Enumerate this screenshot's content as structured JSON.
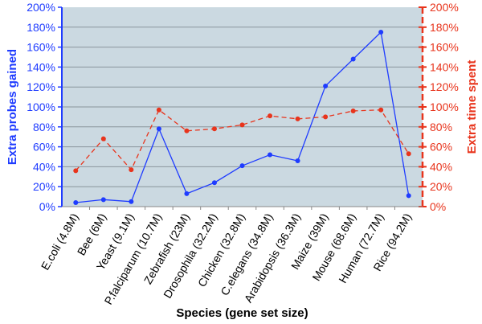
{
  "chart_data": {
    "type": "line",
    "xlabel": "Species (gene set size)",
    "ylabel_left": "Extra probes gained",
    "ylabel_right": "Extra time spent",
    "categories": [
      "E.coli (4.8M)",
      "Bee (6M)",
      "Yeast (9.1M)",
      "P.falciparum (10.7M)",
      "Zebrafish (23M)",
      "Drosophila (32.2M)",
      "Chicken (32.8M)",
      "C.elegans (34.8M)",
      "Arabidopsis (36.3M)",
      "Maize (39M)",
      "Mouse (68.6M)",
      "Human (72.7M)",
      "Rice (94.2M)"
    ],
    "ylim": [
      0,
      200
    ],
    "yticks": [
      "0%",
      "20%",
      "40%",
      "60%",
      "80%",
      "100%",
      "120%",
      "140%",
      "160%",
      "180%",
      "200%"
    ],
    "grid": true,
    "background": "#cbd9e1",
    "series": [
      {
        "axis": "left",
        "color": "#1f3cff",
        "style": "solid",
        "values": [
          4,
          7,
          5,
          78,
          13,
          24,
          41,
          52,
          46,
          121,
          148,
          175,
          11
        ]
      },
      {
        "axis": "right",
        "color": "#e8341c",
        "style": "dashed",
        "values": [
          36,
          68,
          37,
          97,
          76,
          78,
          82,
          91,
          88,
          90,
          96,
          97,
          53
        ]
      }
    ]
  }
}
